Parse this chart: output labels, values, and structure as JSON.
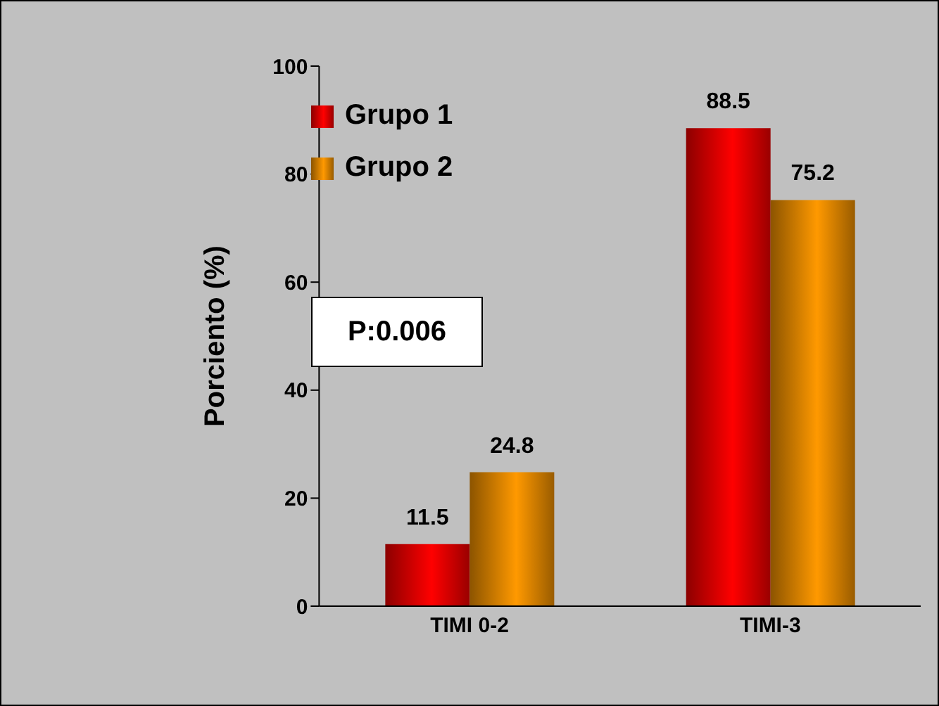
{
  "chart_data": {
    "type": "bar",
    "categories": [
      "TIMI 0-2",
      "TIMI-3"
    ],
    "series": [
      {
        "name": "Grupo 1",
        "color": "#ff0000",
        "values": [
          11.5,
          88.5
        ]
      },
      {
        "name": "Grupo 2",
        "color": "#ff9900",
        "values": [
          24.8,
          75.2
        ]
      }
    ],
    "ylabel": "Porciento (%)",
    "ylim": [
      0,
      100
    ],
    "yticks": [
      0,
      20,
      40,
      60,
      80,
      100
    ],
    "data_labels": true,
    "legend": "top left",
    "grid": false,
    "annotations": [
      "P:0.006"
    ]
  }
}
